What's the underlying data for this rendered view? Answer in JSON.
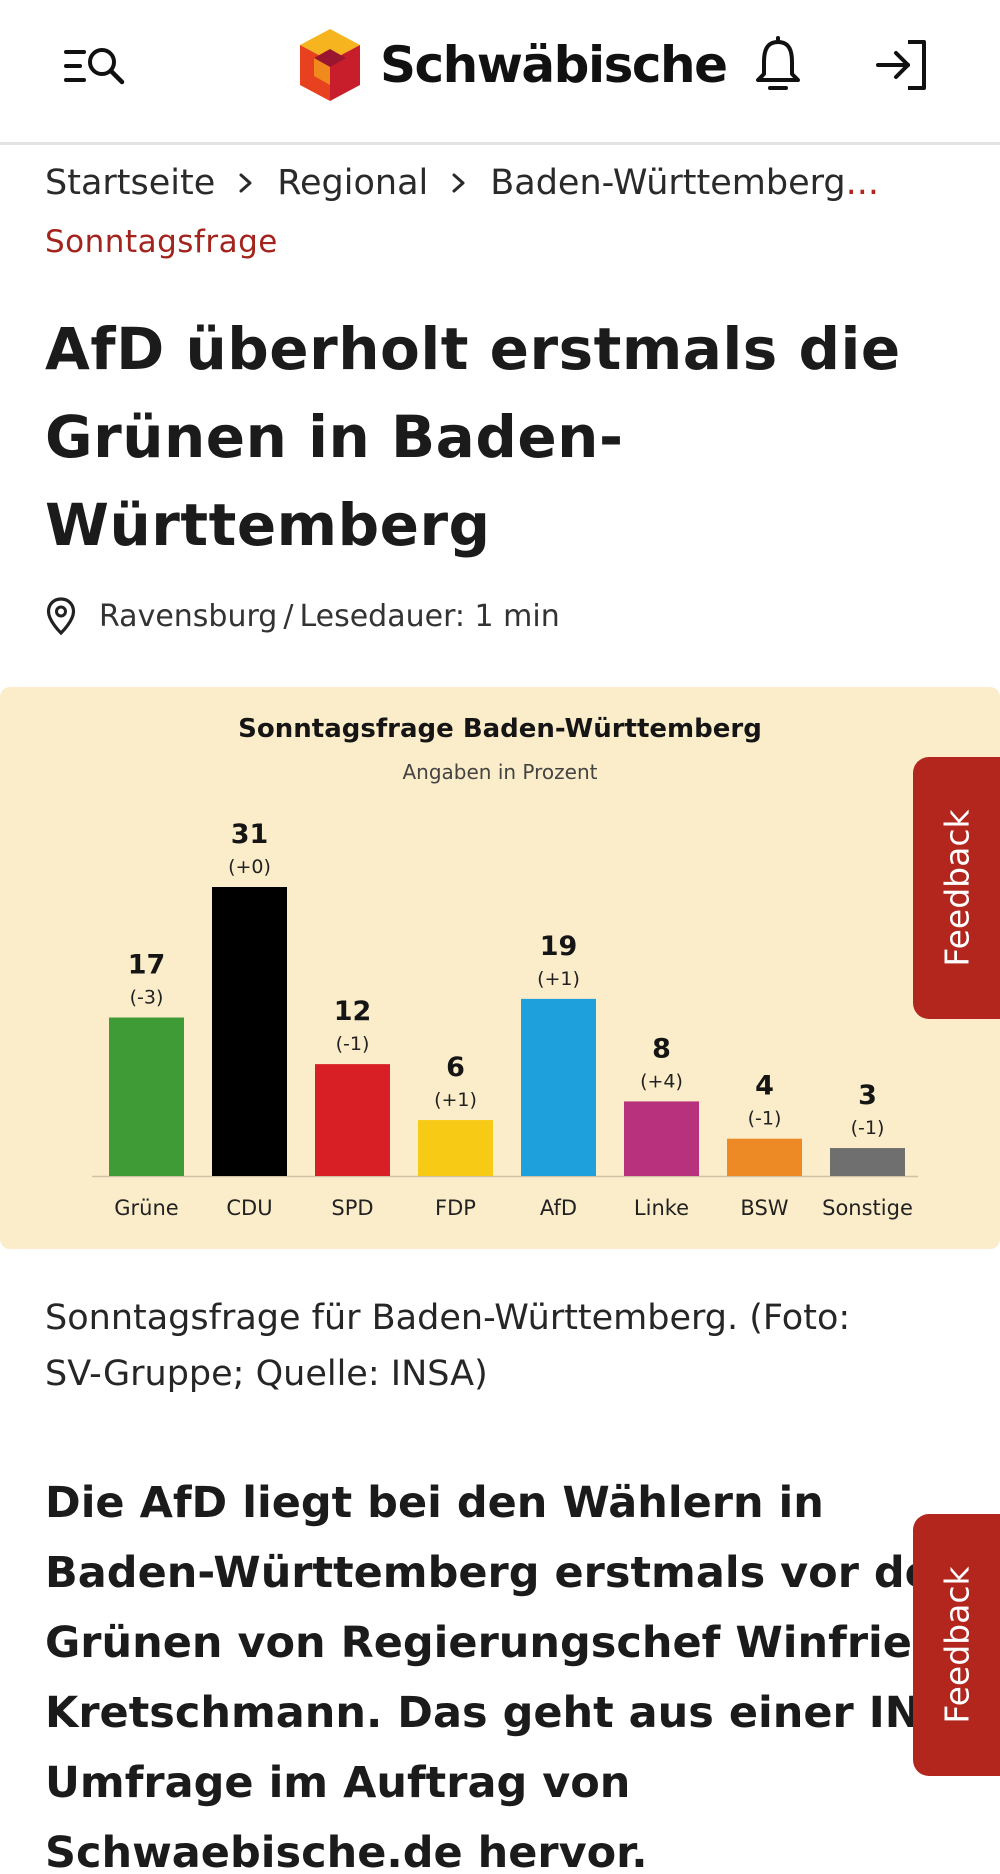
{
  "header": {
    "logo_text": "Schwäbische",
    "menu_icon": "menu-search-icon",
    "bell_icon": "bell-icon",
    "login_icon": "login-icon"
  },
  "breadcrumb": {
    "items": [
      "Startseite",
      "Regional",
      "Baden-Württemberg"
    ],
    "ellipsis": "..."
  },
  "article": {
    "kicker": "Sonntagsfrage",
    "headline_lines": [
      "AfD überholt erstmals die",
      "Grünen in Baden-",
      "Württemberg"
    ],
    "location": "Ravensburg",
    "meta_separator": "/",
    "read_time": "Lesedauer: 1 min",
    "caption_lines": [
      "Sonntagsfrage für Baden-Württemberg. (Foto:",
      "SV-Gruppe; Quelle: INSA)"
    ],
    "lead_lines": [
      "Die AfD liegt bei den Wählern in",
      "Baden-Württemberg erstmals vor den",
      "Grünen von Regierungschef Winfried",
      "Kretschmann. Das geht aus einer INSA-",
      "Umfrage im Auftrag von",
      "Schwaebische.de hervor."
    ]
  },
  "feedback": {
    "label": "Feedback"
  },
  "colors": {
    "accent": "#b3261e",
    "chart_bg": "#fbedc9"
  },
  "chart_data": {
    "type": "bar",
    "title": "Sonntagsfrage Baden-Württemberg",
    "subtitle": "Angaben in Prozent",
    "categories": [
      "Grüne",
      "CDU",
      "SPD",
      "FDP",
      "AfD",
      "Linke",
      "BSW",
      "Sonstige"
    ],
    "values": [
      17,
      31,
      12,
      6,
      19,
      8,
      4,
      3
    ],
    "changes": [
      "(-3)",
      "(+0)",
      "(-1)",
      "(+1)",
      "(+1)",
      "(+4)",
      "(-1)",
      "(-1)"
    ],
    "colors": [
      "#3f9b36",
      "#000000",
      "#d81f26",
      "#f7cb15",
      "#1ea0dc",
      "#b8317c",
      "#ee8a26",
      "#6f6f6f"
    ],
    "ylim": [
      0,
      31
    ],
    "grid": false,
    "legend": "none"
  }
}
